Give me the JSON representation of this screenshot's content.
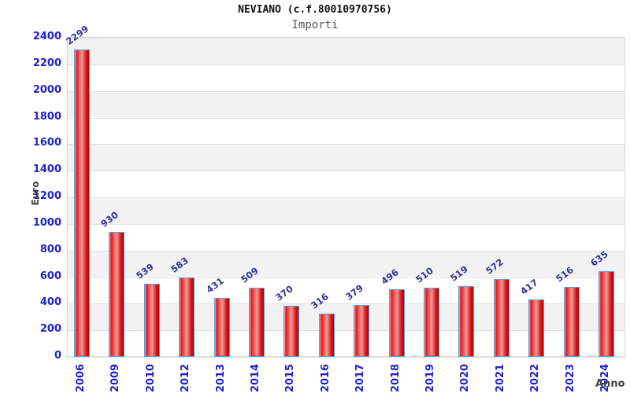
{
  "header": {
    "title": "NEVIANO (c.f.80010970756)",
    "subtitle": "Importi"
  },
  "chart_data": {
    "type": "bar",
    "title": "NEVIANO (c.f.80010970756)",
    "subtitle": "Importi",
    "xlabel": "Anno",
    "ylabel": "Euro",
    "categories": [
      "2006",
      "2009",
      "2010",
      "2012",
      "2013",
      "2014",
      "2015",
      "2016",
      "2017",
      "2018",
      "2019",
      "2020",
      "2021",
      "2022",
      "2023",
      "2024"
    ],
    "values": [
      2299,
      930,
      539,
      583,
      431,
      509,
      370,
      316,
      379,
      496,
      510,
      519,
      572,
      417,
      516,
      635
    ],
    "ylim": [
      0,
      2400
    ],
    "ytick_step": 200,
    "legend": "none",
    "grid": "horizontal alternating bands",
    "colors": {
      "bar_fill": "#e51818",
      "bar_highlight": "#f09b9b",
      "bar_shadow": "#9d0d0d",
      "bar_border": "#5b9ee0",
      "band_gray": "#f2f2f2",
      "band_white": "#ffffff",
      "gridline": "#e0e0e0",
      "tick_label": "#2222cc",
      "value_label": "#333399",
      "axis_title": "#444444",
      "title_text": "#111111",
      "subtitle_text": "#555555"
    }
  }
}
